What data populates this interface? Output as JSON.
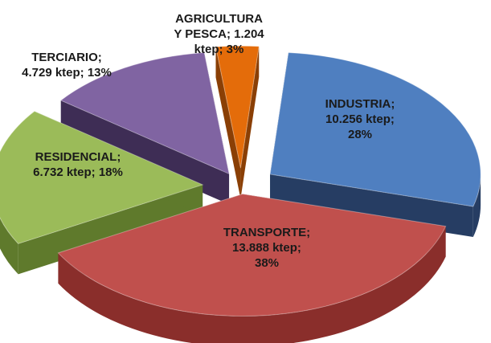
{
  "chart_data": {
    "type": "pie",
    "style": "3d-exploded",
    "series": [
      {
        "slices": [
          {
            "key": "industria",
            "label": "INDUSTRIA;",
            "value": 10256,
            "value_text": "10.256 ktep;",
            "percent": 28,
            "percent_text": "28%",
            "color": "#4f7fc0",
            "side_color": "#263d63"
          },
          {
            "key": "transporte",
            "label": "TRANSPORTE;",
            "value": 13888,
            "value_text": "13.888 ktep;",
            "percent": 38,
            "percent_text": "38%",
            "color": "#c0504d",
            "side_color": "#8a2e2b"
          },
          {
            "key": "residencial",
            "label": "RESIDENCIAL;",
            "value": 6732,
            "value_text": "6.732 ktep; 18%",
            "percent": 18,
            "percent_text": "",
            "color": "#9bbb59",
            "side_color": "#5f7a2c"
          },
          {
            "key": "terciario",
            "label": "TERCIARIO;",
            "value": 4729,
            "value_text": "4.729 ktep; 13%",
            "percent": 13,
            "percent_text": "",
            "color": "#8064a2",
            "side_color": "#3e2d55"
          },
          {
            "key": "agricultura",
            "label": "AGRICULTURA",
            "value": 1204,
            "value_text": "Y PESCA; 1.204",
            "percent": 3,
            "percent_text": "ktep; 3%",
            "color": "#e46c0a",
            "side_color": "#8a3f05"
          }
        ]
      }
    ],
    "units": "ktep",
    "legend": "none"
  }
}
